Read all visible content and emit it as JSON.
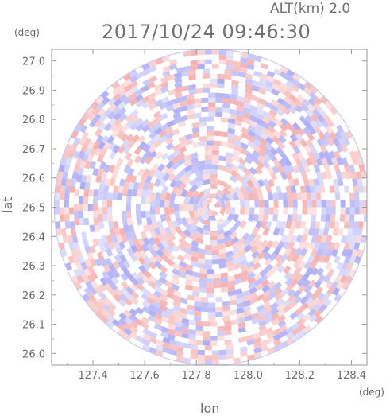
{
  "header": {
    "alt_label": "ALT(km) 2.0",
    "timestamp": "2017/10/24 09:46:30"
  },
  "chart_data": {
    "type": "heatmap",
    "title": "2017/10/24 09:46:30",
    "subtitle": "ALT(km) 2.0",
    "xlabel": "lon",
    "ylabel": "lat",
    "xunit": "(deg)",
    "yunit": "(deg)",
    "xlim": [
      127.24,
      128.46
    ],
    "ylim": [
      25.96,
      27.04
    ],
    "xticks": [
      127.4,
      127.6,
      127.8,
      128.0,
      128.2,
      128.4
    ],
    "yticks": [
      26.0,
      26.1,
      26.2,
      26.3,
      26.4,
      26.5,
      26.6,
      26.7,
      26.8,
      26.9,
      27.0
    ],
    "center": {
      "lon": 127.86,
      "lat": 26.5
    },
    "radius_deg_lat": 0.54,
    "colormap": {
      "negative": "#8a8af0",
      "zero": "#ffffff",
      "positive": "#f09090"
    },
    "grid": false,
    "legend": "none"
  }
}
